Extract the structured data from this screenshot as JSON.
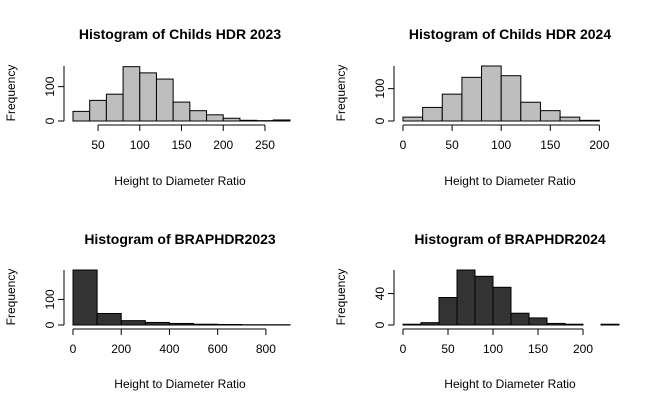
{
  "chart_data": [
    {
      "type": "bar",
      "title": "Histogram of Childs HDR 2023",
      "xlabel": "Height to Diameter Ratio",
      "ylabel": "Frequency",
      "bar_color": "#bebebe",
      "bin_edges": [
        20,
        40,
        60,
        80,
        100,
        120,
        140,
        160,
        180,
        200,
        220,
        240,
        260,
        280
      ],
      "values": [
        28,
        60,
        78,
        158,
        140,
        122,
        55,
        30,
        18,
        8,
        2,
        1,
        3
      ],
      "xticks": [
        50,
        100,
        150,
        200,
        250
      ],
      "yticks": [
        0,
        100
      ],
      "xlim": [
        20,
        280
      ],
      "ylim": [
        0,
        160
      ]
    },
    {
      "type": "bar",
      "title": "Histogram of Childs HDR 2024",
      "xlabel": "Height to Diameter Ratio",
      "ylabel": "Frequency",
      "bar_color": "#bebebe",
      "bin_edges": [
        0,
        20,
        40,
        60,
        80,
        100,
        120,
        140,
        160,
        180,
        200,
        220
      ],
      "values": [
        12,
        42,
        83,
        135,
        170,
        140,
        58,
        32,
        12,
        2,
        0
      ],
      "xticks": [
        0,
        50,
        100,
        150,
        200
      ],
      "yticks": [
        0,
        100
      ],
      "xlim": [
        0,
        220
      ],
      "ylim": [
        0,
        170
      ]
    },
    {
      "type": "bar",
      "title": "Histogram of BRAPHDR2023",
      "xlabel": "Height to Diameter Ratio",
      "ylabel": "Frequency",
      "bar_color": "#333333",
      "bin_edges": [
        0,
        100,
        200,
        300,
        400,
        500,
        600,
        700,
        800,
        900
      ],
      "values": [
        215,
        45,
        17,
        10,
        6,
        3,
        2,
        1,
        1
      ],
      "xticks": [
        0,
        200,
        400,
        600,
        800
      ],
      "yticks": [
        0,
        100
      ],
      "xlim": [
        0,
        900
      ],
      "ylim": [
        0,
        215
      ]
    },
    {
      "type": "bar",
      "title": "Histogram of BRAPHDR2024",
      "xlabel": "Height to Diameter Ratio",
      "ylabel": "Frequency",
      "bar_color": "#333333",
      "bin_edges": [
        0,
        20,
        40,
        60,
        80,
        100,
        120,
        140,
        160,
        180,
        200,
        220,
        240
      ],
      "values": [
        1,
        3,
        35,
        70,
        62,
        48,
        15,
        9,
        2,
        1,
        0,
        1
      ],
      "xticks": [
        0,
        50,
        100,
        150,
        200
      ],
      "yticks": [
        0,
        40
      ],
      "xlim": [
        0,
        240
      ],
      "ylim": [
        0,
        70
      ]
    }
  ]
}
